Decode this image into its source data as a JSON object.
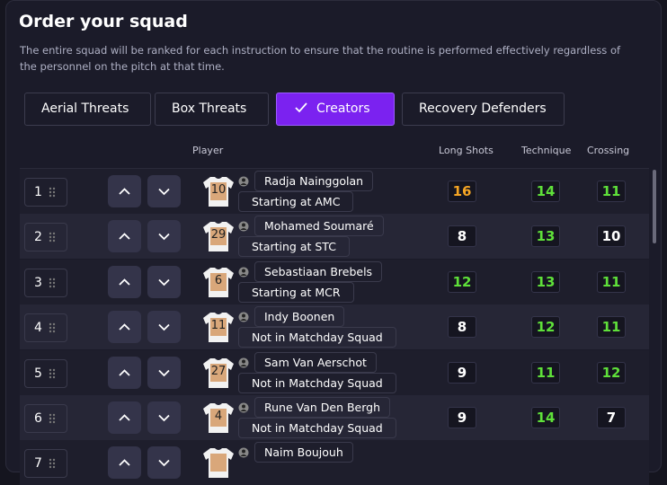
{
  "header": {
    "title": "Order your squad",
    "description": "The entire squad will be ranked for each instruction to ensure that the routine is performed effectively regardless of the personnel on the pitch at that time."
  },
  "tabs": [
    {
      "label": "Aerial Threats",
      "selected": false
    },
    {
      "label": "Box Threats",
      "selected": false
    },
    {
      "label": "Creators",
      "selected": true
    },
    {
      "label": "Recovery Defenders",
      "selected": false
    }
  ],
  "table": {
    "columns": [
      "Player",
      "Long Shots",
      "Technique",
      "Crossing"
    ],
    "rows": [
      {
        "rank": "1",
        "shirt": "10",
        "name": "Radja Nainggolan",
        "status": "Starting at AMC",
        "stats": [
          16,
          14,
          11
        ],
        "stat_colors": [
          "#f5a524",
          "#5fe03a",
          "#5fe03a"
        ]
      },
      {
        "rank": "2",
        "shirt": "29",
        "name": "Mohamed Soumaré",
        "status": "Starting at STC",
        "stats": [
          8,
          13,
          10
        ],
        "stat_colors": [
          "#ffffff",
          "#5fe03a",
          "#ffffff"
        ]
      },
      {
        "rank": "3",
        "shirt": "6",
        "name": "Sebastiaan Brebels",
        "status": "Starting at MCR",
        "stats": [
          12,
          13,
          11
        ],
        "stat_colors": [
          "#5fe03a",
          "#5fe03a",
          "#5fe03a"
        ]
      },
      {
        "rank": "4",
        "shirt": "11",
        "name": "Indy Boonen",
        "status": "Not in Matchday Squad",
        "stats": [
          8,
          12,
          11
        ],
        "stat_colors": [
          "#ffffff",
          "#5fe03a",
          "#5fe03a"
        ]
      },
      {
        "rank": "5",
        "shirt": "27",
        "name": "Sam Van Aerschot",
        "status": "Not in Matchday Squad",
        "stats": [
          9,
          11,
          12
        ],
        "stat_colors": [
          "#ffffff",
          "#5fe03a",
          "#5fe03a"
        ]
      },
      {
        "rank": "6",
        "shirt": "4",
        "name": "Rune Van Den Bergh",
        "status": "Not in Matchday Squad",
        "stats": [
          9,
          14,
          7
        ],
        "stat_colors": [
          "#ffffff",
          "#5fe03a",
          "#ffffff"
        ]
      },
      {
        "rank": "7",
        "name": "Naim Boujouh"
      }
    ]
  }
}
